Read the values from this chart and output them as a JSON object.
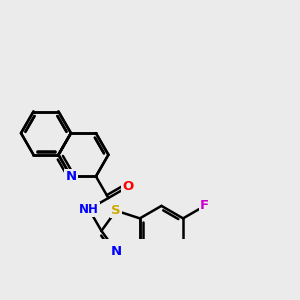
{
  "background_color": "#ebebeb",
  "bond_color": "#000000",
  "atom_colors": {
    "N": "#0000ff",
    "O": "#ff0000",
    "S": "#ccaa00",
    "F": "#cc00cc",
    "H": "#008888",
    "C": "#000000"
  },
  "bond_width": 1.8,
  "font_size": 9.5
}
